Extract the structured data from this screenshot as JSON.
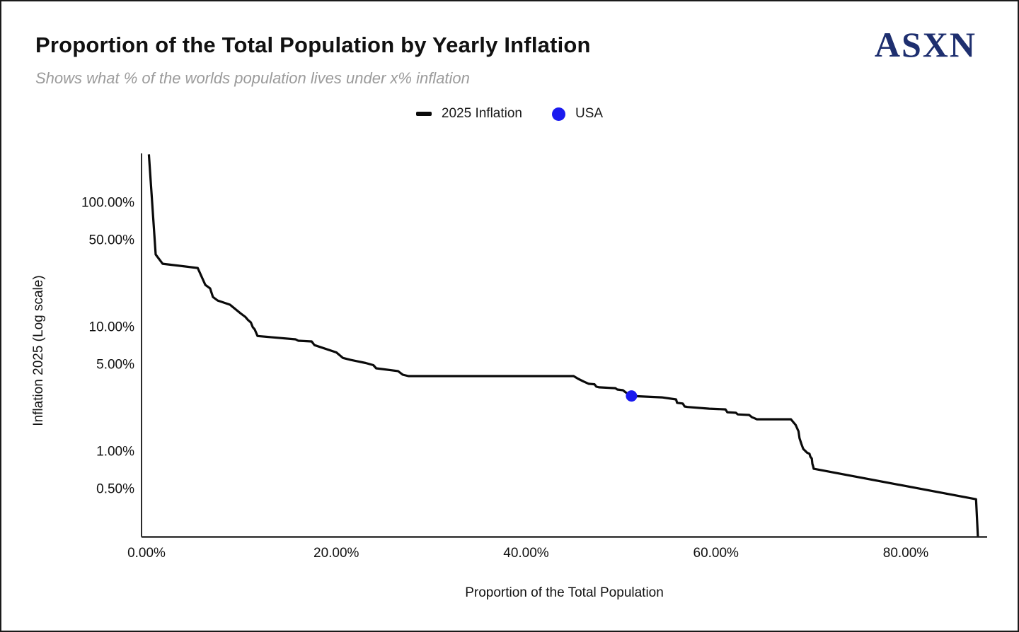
{
  "page": {
    "background": "#ffffff",
    "border_color": "#1a1a1a"
  },
  "header": {
    "title": "Proportion of the Total Population by Yearly Inflation",
    "subtitle": "Shows what % of the worlds population lives under x% inflation",
    "title_color": "#111111",
    "subtitle_color": "#9b9b9b",
    "logo_text": "ASXN",
    "logo_color": "#1e2f6f"
  },
  "legend": {
    "position": "top-center",
    "items": [
      {
        "label": "2025 Inflation",
        "marker": "dash",
        "color": "#0a0a0a"
      },
      {
        "label": "USA",
        "marker": "circle",
        "color": "#1a1aef"
      }
    ]
  },
  "chart_data": {
    "type": "line",
    "title": "Proportion of the Total Population by Yearly Inflation",
    "subtitle": "Shows what % of the worlds population lives under x% inflation",
    "xlabel": "Proportion of the Total Population",
    "ylabel": "Inflation 2025 (Log scale)",
    "x_axis": {
      "label": "Proportion of the Total Population",
      "unit": "%",
      "range": [
        0,
        88.6
      ],
      "ticks": [
        {
          "value": 0,
          "label": "0.00%"
        },
        {
          "value": 20,
          "label": "20.00%"
        },
        {
          "value": 40,
          "label": "40.00%"
        },
        {
          "value": 60,
          "label": "60.00%"
        },
        {
          "value": 80,
          "label": "80.00%"
        }
      ]
    },
    "y_axis": {
      "label": "Inflation 2025 (Log scale)",
      "scale": "log",
      "unit": "%",
      "range": [
        0.2,
        245
      ],
      "ticks": [
        {
          "value": 100,
          "label": "100.00%"
        },
        {
          "value": 50,
          "label": "50.00%"
        },
        {
          "value": 10,
          "label": "10.00%"
        },
        {
          "value": 5,
          "label": "5.00%"
        },
        {
          "value": 1,
          "label": "1.00%"
        },
        {
          "value": 0.5,
          "label": "0.50%"
        }
      ]
    },
    "grid": false,
    "legend_position": "top-center",
    "series": [
      {
        "name": "2025 Inflation",
        "color": "#0a0a0a",
        "line_width": 3.2,
        "points": [
          [
            0.25,
            242
          ],
          [
            0.97,
            38.0
          ],
          [
            1.7,
            32.0
          ],
          [
            5.4,
            29.6
          ],
          [
            6.2,
            21.6
          ],
          [
            6.7,
            20.3
          ],
          [
            7.0,
            17.3
          ],
          [
            7.5,
            16.2
          ],
          [
            8.8,
            15.0
          ],
          [
            9.9,
            12.8
          ],
          [
            10.4,
            12.0
          ],
          [
            10.7,
            11.3
          ],
          [
            11.0,
            10.8
          ],
          [
            11.2,
            9.9
          ],
          [
            11.4,
            9.5
          ],
          [
            11.7,
            8.4
          ],
          [
            15.7,
            7.9
          ],
          [
            16.0,
            7.7
          ],
          [
            17.4,
            7.6
          ],
          [
            17.7,
            7.1
          ],
          [
            20.0,
            6.2
          ],
          [
            20.7,
            5.6
          ],
          [
            21.5,
            5.4
          ],
          [
            23.1,
            5.1
          ],
          [
            23.9,
            4.9
          ],
          [
            24.2,
            4.62
          ],
          [
            24.8,
            4.56
          ],
          [
            26.5,
            4.39
          ],
          [
            27.0,
            4.11
          ],
          [
            27.6,
            4.0
          ],
          [
            45.0,
            4.0
          ],
          [
            45.5,
            3.8
          ],
          [
            46.1,
            3.61
          ],
          [
            46.6,
            3.47
          ],
          [
            47.2,
            3.44
          ],
          [
            47.4,
            3.29
          ],
          [
            47.7,
            3.25
          ],
          [
            49.4,
            3.2
          ],
          [
            49.6,
            3.12
          ],
          [
            50.2,
            3.08
          ],
          [
            50.5,
            2.96
          ],
          [
            51.1,
            2.77
          ],
          [
            54.3,
            2.7
          ],
          [
            55.8,
            2.6
          ],
          [
            55.9,
            2.44
          ],
          [
            56.5,
            2.41
          ],
          [
            56.7,
            2.28
          ],
          [
            57.0,
            2.26
          ],
          [
            59.3,
            2.19
          ],
          [
            61.0,
            2.16
          ],
          [
            61.2,
            2.05
          ],
          [
            62.1,
            2.03
          ],
          [
            62.3,
            1.97
          ],
          [
            63.5,
            1.95
          ],
          [
            63.8,
            1.87
          ],
          [
            64.1,
            1.83
          ],
          [
            64.3,
            1.8
          ],
          [
            67.9,
            1.8
          ],
          [
            68.4,
            1.62
          ],
          [
            68.7,
            1.44
          ],
          [
            68.8,
            1.27
          ],
          [
            69.0,
            1.14
          ],
          [
            69.2,
            1.04
          ],
          [
            69.6,
            0.97
          ],
          [
            69.85,
            0.95
          ],
          [
            69.95,
            0.9
          ],
          [
            70.1,
            0.87
          ],
          [
            70.16,
            0.79
          ],
          [
            70.25,
            0.75
          ],
          [
            70.3,
            0.72
          ],
          [
            87.4,
            0.41
          ],
          [
            87.6,
            0.205
          ]
        ]
      }
    ],
    "markers": [
      {
        "name": "USA",
        "color": "#1a1aef",
        "x": 51.1,
        "y": 2.77,
        "radius": 8
      }
    ]
  }
}
